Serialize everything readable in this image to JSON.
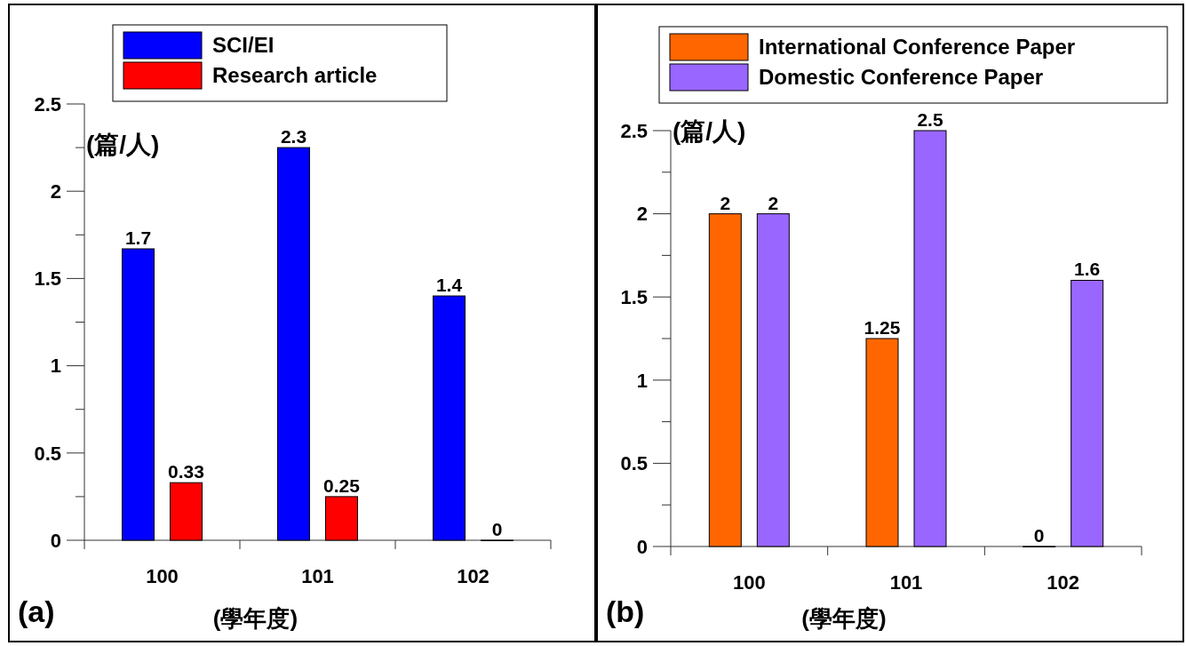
{
  "chart_data": [
    {
      "type": "bar",
      "ylabel": "(篇/人)",
      "xlabel": "(學年度)",
      "categories": [
        "100",
        "101",
        "102"
      ],
      "legend": "top",
      "ylim": [
        0,
        2.5
      ],
      "yticks": [
        0,
        {
          "value": 0.25,
          "label": null
        },
        0.5,
        {
          "value": 0.75,
          "label": null
        },
        1,
        {
          "value": 1.25,
          "label": null
        },
        1.5,
        {
          "value": 1.75,
          "label": null
        },
        2,
        {
          "value": 2.25,
          "label": null
        },
        2.5
      ],
      "series": [
        {
          "name": "SCI/EI",
          "color": "#0000ff",
          "values": [
            1.67,
            2.25,
            1.4
          ],
          "value_labels": [
            "1.7",
            "2.3",
            "1.4"
          ]
        },
        {
          "name": "Research article",
          "color": "#ff0000",
          "values": [
            0.33,
            0.25,
            0
          ],
          "value_labels": [
            "0.33",
            "0.25",
            "0"
          ]
        }
      ],
      "annotations": [
        "(a)"
      ]
    },
    {
      "type": "bar",
      "ylabel": "(篇/人)",
      "xlabel": "(學年度)",
      "categories": [
        "100",
        "101",
        "102"
      ],
      "legend": "top left",
      "ylim": [
        0,
        2.5
      ],
      "yticks": [
        0,
        {
          "value": 0.25,
          "label": null
        },
        0.5,
        {
          "value": 0.75,
          "label": null
        },
        1,
        {
          "value": 1.25,
          "label": null
        },
        1.5,
        {
          "value": 1.75,
          "label": null
        },
        2,
        {
          "value": 2.25,
          "label": null
        },
        2.5
      ],
      "data_labels": true,
      "series": [
        {
          "name": "International Conference Paper",
          "color": "#ff6600",
          "values": [
            2,
            1.25,
            0
          ]
        },
        {
          "name": "Domestic Conference Paper",
          "color": "#9966ff",
          "values": [
            2,
            2.5,
            1.6
          ]
        }
      ],
      "annotations": [
        "(b)"
      ]
    }
  ]
}
